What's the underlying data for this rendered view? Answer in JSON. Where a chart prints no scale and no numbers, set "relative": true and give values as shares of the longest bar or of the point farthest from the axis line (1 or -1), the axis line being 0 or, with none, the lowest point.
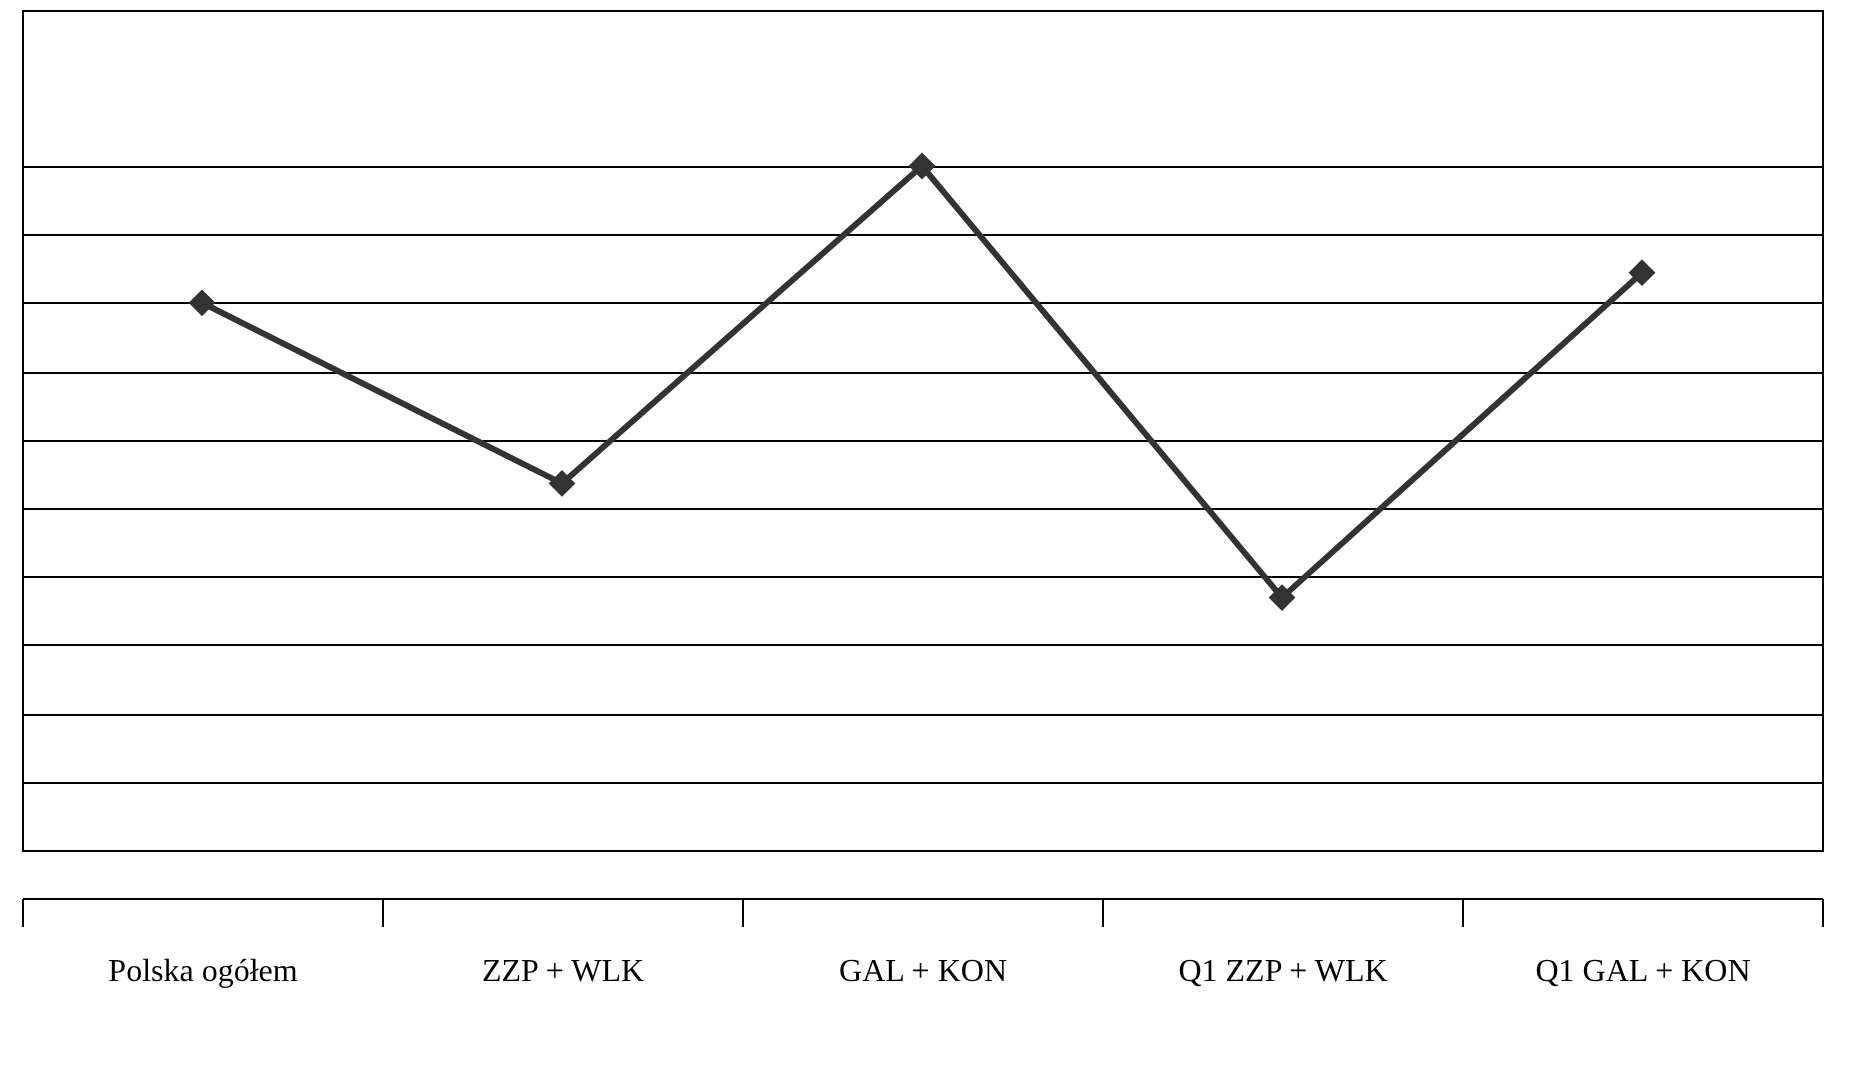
{
  "chart_data": {
    "type": "line",
    "relative": true,
    "categories": [
      "Polska ogółem",
      "ZZP + WLK",
      "GAL + KON",
      "Q1 ZZP + WLK",
      "Q1 GAL + KON"
    ],
    "series": [
      {
        "color": "#333333",
        "values": [
          0.8,
          0.536,
          1,
          0.369,
          0.844
        ]
      }
    ],
    "marker": "diamond",
    "line_style": "solid",
    "grid": "y"
  }
}
